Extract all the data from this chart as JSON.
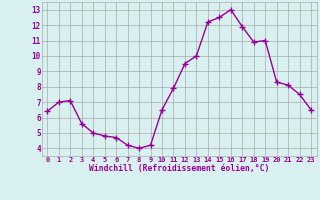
{
  "x": [
    0,
    1,
    2,
    3,
    4,
    5,
    6,
    7,
    8,
    9,
    10,
    11,
    12,
    13,
    14,
    15,
    16,
    17,
    18,
    19,
    20,
    21,
    22,
    23
  ],
  "y": [
    6.4,
    7.0,
    7.1,
    5.6,
    5.0,
    4.8,
    4.7,
    4.2,
    4.0,
    4.2,
    6.5,
    7.9,
    9.5,
    10.0,
    12.2,
    12.5,
    13.0,
    11.9,
    10.9,
    11.0,
    8.3,
    8.1,
    7.5,
    6.5
  ],
  "line_color": "#990099",
  "marker": "+",
  "markersize": 4,
  "linewidth": 1.0,
  "bg_color": "#d8f0f0",
  "grid_color": "#aaaaaa",
  "xlabel": "Windchill (Refroidissement éolien,°C)",
  "tick_color": "#990099",
  "xlim": [
    -0.5,
    23.5
  ],
  "ylim": [
    3.5,
    13.5
  ],
  "yticks": [
    4,
    5,
    6,
    7,
    8,
    9,
    10,
    11,
    12,
    13
  ],
  "xticks": [
    0,
    1,
    2,
    3,
    4,
    5,
    6,
    7,
    8,
    9,
    10,
    11,
    12,
    13,
    14,
    15,
    16,
    17,
    18,
    19,
    20,
    21,
    22,
    23
  ]
}
